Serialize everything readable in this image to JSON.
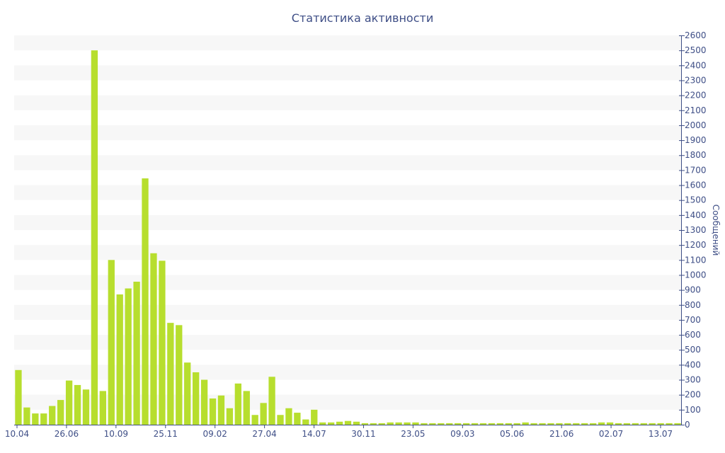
{
  "chart_data": {
    "type": "bar",
    "title": "Статистика активности",
    "xlabel": "",
    "ylabel": "Сообщений",
    "ylim": [
      0,
      2600
    ],
    "y_ticks": [
      0,
      100,
      200,
      300,
      400,
      500,
      600,
      700,
      800,
      900,
      1000,
      1100,
      1200,
      1300,
      1400,
      1500,
      1600,
      1700,
      1800,
      1900,
      2000,
      2100,
      2200,
      2300,
      2400,
      2500,
      2600
    ],
    "x_tick_labels": [
      "10.04",
      "26.06",
      "10.09",
      "25.11",
      "09.02",
      "27.04",
      "14.07",
      "30.11",
      "23.05",
      "09.03",
      "05.06",
      "21.06",
      "02.07",
      "13.07"
    ],
    "grid": "horizontal alternating bands",
    "legend": "none",
    "bar_color": "#b7de2e",
    "band_color": "#f7f7f7",
    "text_color": "#3e4e86",
    "values": [
      365,
      115,
      75,
      75,
      125,
      165,
      295,
      265,
      235,
      2500,
      225,
      1100,
      870,
      910,
      955,
      1645,
      1145,
      1095,
      680,
      665,
      415,
      350,
      300,
      175,
      195,
      110,
      275,
      225,
      65,
      145,
      320,
      65,
      110,
      80,
      35,
      100,
      15,
      15,
      20,
      25,
      20,
      10,
      10,
      10,
      15,
      15,
      15,
      15,
      10,
      10,
      10,
      10,
      10,
      10,
      10,
      10,
      10,
      10,
      10,
      10,
      15,
      10,
      10,
      10,
      10,
      10,
      10,
      10,
      10,
      15,
      15,
      10,
      10,
      10,
      10,
      10,
      10,
      10,
      10
    ]
  }
}
